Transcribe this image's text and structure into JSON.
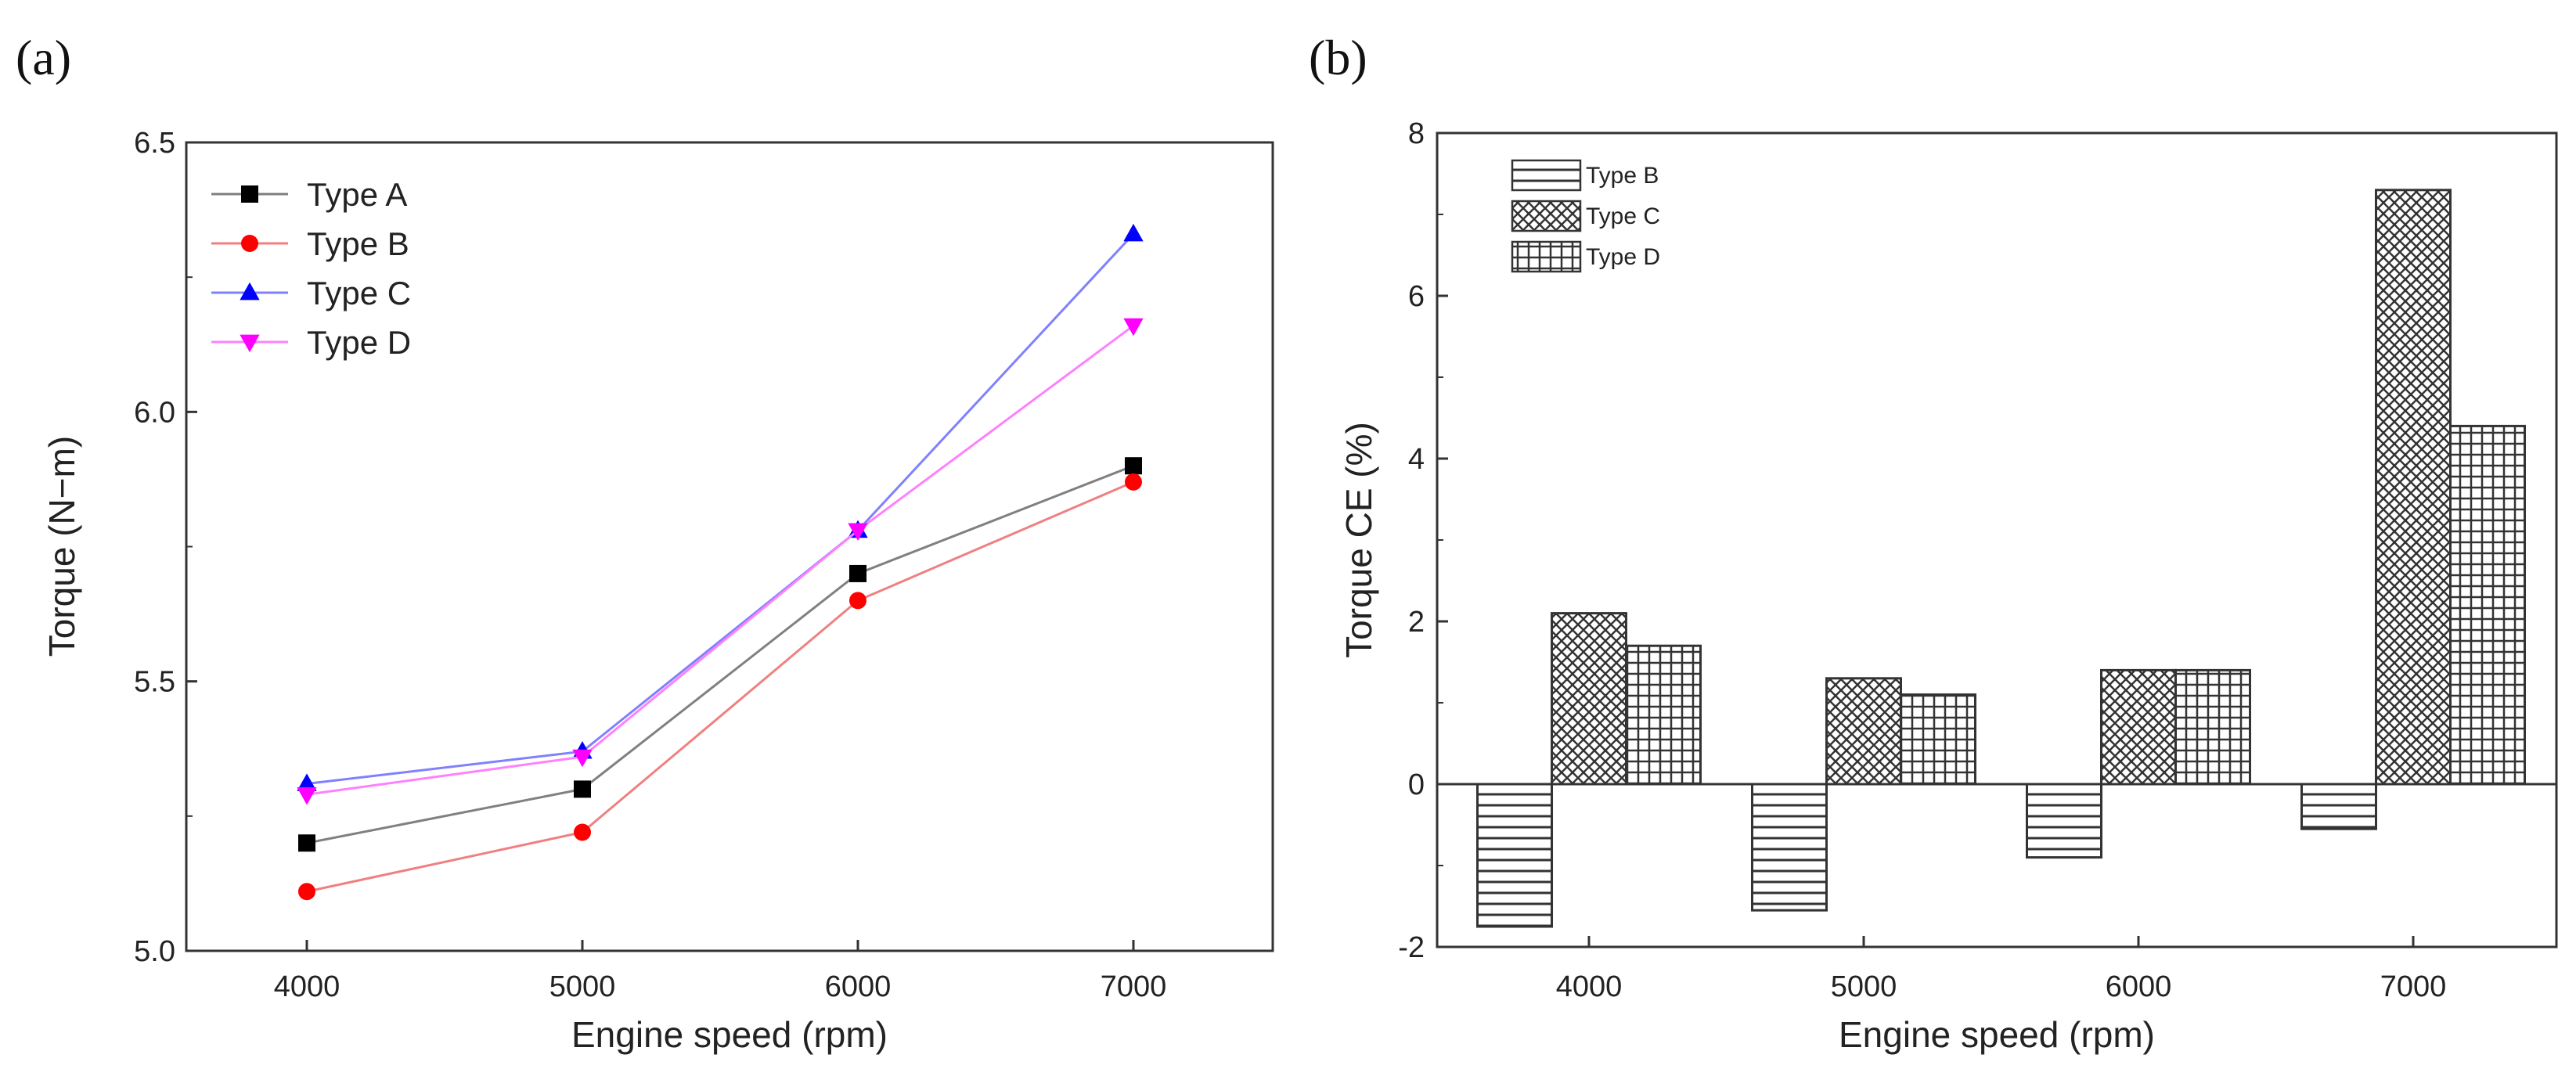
{
  "chart_data": [
    {
      "panel": "(a)",
      "type": "line",
      "xlabel": "Engine speed (rpm)",
      "ylabel": "Torque (N−m)",
      "x": [
        4000,
        5000,
        6000,
        7000
      ],
      "xticks": [
        "4000",
        "5000",
        "6000",
        "7000"
      ],
      "ylim": [
        5.0,
        6.5
      ],
      "yticks": [
        "5.0",
        "5.5",
        "6.0",
        "6.5"
      ],
      "legend_position": "top-left",
      "series": [
        {
          "name": "Type A",
          "color": "#808080",
          "marker": "square",
          "marker_color": "#000000",
          "values": [
            5.2,
            5.3,
            5.7,
            5.9
          ]
        },
        {
          "name": "Type B",
          "color": "#f08080",
          "marker": "circle",
          "marker_color": "#ff0000",
          "values": [
            5.11,
            5.22,
            5.65,
            5.87
          ]
        },
        {
          "name": "Type C",
          "color": "#8080ff",
          "marker": "triangle-up",
          "marker_color": "#0000ff",
          "values": [
            5.31,
            5.37,
            5.78,
            6.33
          ]
        },
        {
          "name": "Type D",
          "color": "#ff80ff",
          "marker": "triangle-down",
          "marker_color": "#ff00ff",
          "values": [
            5.29,
            5.36,
            5.78,
            6.16
          ]
        }
      ]
    },
    {
      "panel": "(b)",
      "type": "bar",
      "xlabel": "Engine speed (rpm)",
      "ylabel": "Torque CE (%)",
      "categories": [
        "4000",
        "5000",
        "6000",
        "7000"
      ],
      "ylim": [
        -2,
        8
      ],
      "yticks": [
        "-2",
        "0",
        "2",
        "4",
        "6",
        "8"
      ],
      "legend_position": "top-left",
      "series": [
        {
          "name": "Type B",
          "pattern": "horizontal-lines",
          "values": [
            -1.75,
            -1.55,
            -0.9,
            -0.55
          ]
        },
        {
          "name": "Type C",
          "pattern": "cross-hatch",
          "values": [
            2.1,
            1.3,
            1.4,
            7.3
          ]
        },
        {
          "name": "Type D",
          "pattern": "grid",
          "values": [
            1.7,
            1.1,
            1.4,
            4.4
          ]
        }
      ]
    }
  ]
}
